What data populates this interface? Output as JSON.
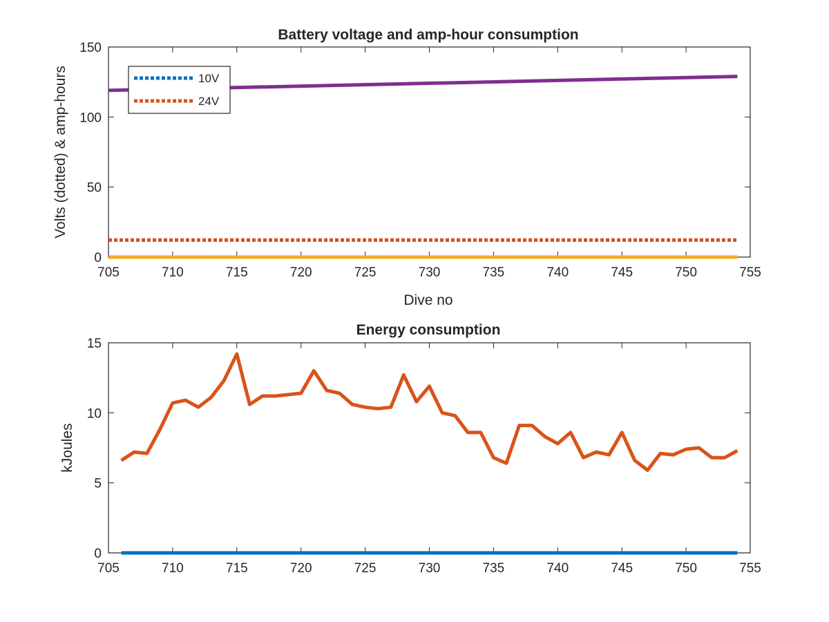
{
  "chart_data": [
    {
      "type": "line",
      "title": "Battery voltage and amp-hour consumption",
      "xlabel": "Dive no",
      "ylabel": "Volts (dotted) & amp-hours",
      "xlim": [
        705,
        755
      ],
      "ylim": [
        0,
        150
      ],
      "xticks": [
        705,
        710,
        715,
        720,
        725,
        730,
        735,
        740,
        745,
        750,
        755
      ],
      "yticks": [
        0,
        50,
        100,
        150
      ],
      "grid": false,
      "legend_position": "top-left",
      "series": [
        {
          "name": "10V",
          "style": "dotted",
          "color": "#0072BD",
          "x": [
            705,
            754
          ],
          "y": [
            12,
            12
          ]
        },
        {
          "name": "24V",
          "style": "dotted",
          "color": "#D95319",
          "x": [
            705,
            754
          ],
          "y": [
            12.5,
            12.5
          ]
        },
        {
          "style": "solid",
          "color": "#EDB120",
          "x": [
            705,
            754
          ],
          "y": [
            0,
            0
          ]
        },
        {
          "style": "solid",
          "color": "#7E2F8E",
          "x": [
            705,
            754
          ],
          "y": [
            119,
            129
          ]
        }
      ]
    },
    {
      "type": "line",
      "title": "Energy consumption",
      "xlabel": "",
      "ylabel": "kJoules",
      "xlim": [
        705,
        755
      ],
      "ylim": [
        0,
        15
      ],
      "xticks": [
        705,
        710,
        715,
        720,
        725,
        730,
        735,
        740,
        745,
        750,
        755
      ],
      "yticks": [
        0,
        5,
        10,
        15
      ],
      "grid": false,
      "series": [
        {
          "style": "solid",
          "color": "#0072BD",
          "x": [
            706,
            754
          ],
          "y": [
            0,
            0
          ]
        },
        {
          "style": "solid",
          "color": "#D95319",
          "x": [
            706,
            707,
            708,
            709,
            710,
            711,
            712,
            713,
            714,
            715,
            716,
            717,
            718,
            719,
            720,
            721,
            722,
            723,
            724,
            725,
            726,
            727,
            728,
            729,
            730,
            731,
            732,
            733,
            734,
            735,
            736,
            737,
            738,
            739,
            740,
            741,
            742,
            743,
            744,
            745,
            746,
            747,
            748,
            749,
            750,
            751,
            752,
            753,
            754
          ],
          "y": [
            6.6,
            7.2,
            7.1,
            8.8,
            10.7,
            10.9,
            10.4,
            11.1,
            12.3,
            14.2,
            10.6,
            11.2,
            11.2,
            11.3,
            11.4,
            13.0,
            11.6,
            11.4,
            10.6,
            10.4,
            10.3,
            10.4,
            12.7,
            10.8,
            11.9,
            10.0,
            9.8,
            8.6,
            8.6,
            6.8,
            6.4,
            9.1,
            9.1,
            8.3,
            7.8,
            8.6,
            6.8,
            7.2,
            7.0,
            8.6,
            6.6,
            5.9,
            7.1,
            7.0,
            7.4,
            7.5,
            6.8,
            6.8,
            7.3
          ]
        }
      ]
    }
  ]
}
